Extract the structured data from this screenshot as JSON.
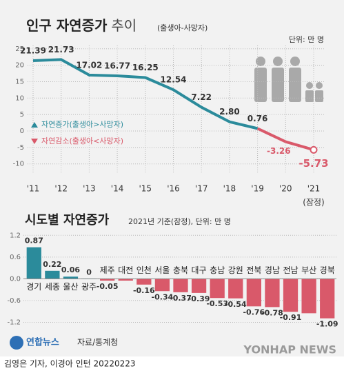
{
  "chart_data": [
    {
      "type": "line",
      "title": "인구 자연증가",
      "title_suffix": "추이",
      "subtitle": "(출생아-사망자)",
      "unit": "단위: 만 명",
      "categories": [
        "'11",
        "'12",
        "'13",
        "'14",
        "'15",
        "'16",
        "'17",
        "'18",
        "'19",
        "'20",
        "'21"
      ],
      "x_note": "(잠정)",
      "series": [
        {
          "name": "자연증가(출생아>사망자)",
          "color": "#2b8b9b",
          "values": [
            21.39,
            21.73,
            17.02,
            16.77,
            16.25,
            12.54,
            7.22,
            2.8,
            0.76,
            null,
            null
          ],
          "value_labels": [
            "21.39",
            "21.73",
            "17.02",
            "16.77",
            "16.25",
            "12.54",
            "7.22",
            "2.80",
            "0.76",
            null,
            null
          ]
        },
        {
          "name": "자연감소(출생아<사망자)",
          "color": "#d9596a",
          "values": [
            null,
            null,
            null,
            null,
            null,
            null,
            null,
            null,
            null,
            -3.26,
            -5.73
          ]
        }
      ],
      "ylim": [
        -13,
        26
      ],
      "yticks": [
        25,
        20,
        15,
        10,
        5,
        0,
        -5,
        -10
      ],
      "grid": true
    },
    {
      "type": "bar",
      "title": "시도별 자연증가",
      "subtitle": "2021년 기준(잠정), 단위: 만 명",
      "categories": [
        "경기",
        "세종",
        "울산",
        "광주",
        "제주",
        "대전",
        "인천",
        "서울",
        "충북",
        "대구",
        "충남",
        "강원",
        "전북",
        "경남",
        "전남",
        "부산",
        "경북"
      ],
      "values": [
        0.87,
        0.22,
        0.06,
        0,
        -0.05,
        -0.05,
        -0.16,
        -0.34,
        -0.37,
        -0.39,
        -0.53,
        -0.54,
        -0.76,
        -0.78,
        -0.91,
        -0.95,
        -1.09
      ],
      "value_labels": [
        "0.87",
        "0.22",
        "0.06",
        "0",
        "-0.05",
        null,
        "-0.16",
        "-0.34",
        "-0.37",
        "-0.39",
        "-0.53",
        "-0.54",
        "-0.76",
        "-0.78",
        "-0.91",
        null,
        "-1.09"
      ],
      "positive_color": "#2b8b9b",
      "negative_color": "#d9596a",
      "ylim": [
        -1.4,
        1.3
      ],
      "yticks": [
        1.2,
        0.6,
        {
          "value": 0,
          "label": "0.0"
        },
        -0.6,
        -1.2
      ],
      "grid": true
    }
  ],
  "source": "자료/통계청",
  "logo": "연합뉴스",
  "watermark": "YONHAP NEWS",
  "credit": "김영은 기자, 이경아 인턴 20220223"
}
